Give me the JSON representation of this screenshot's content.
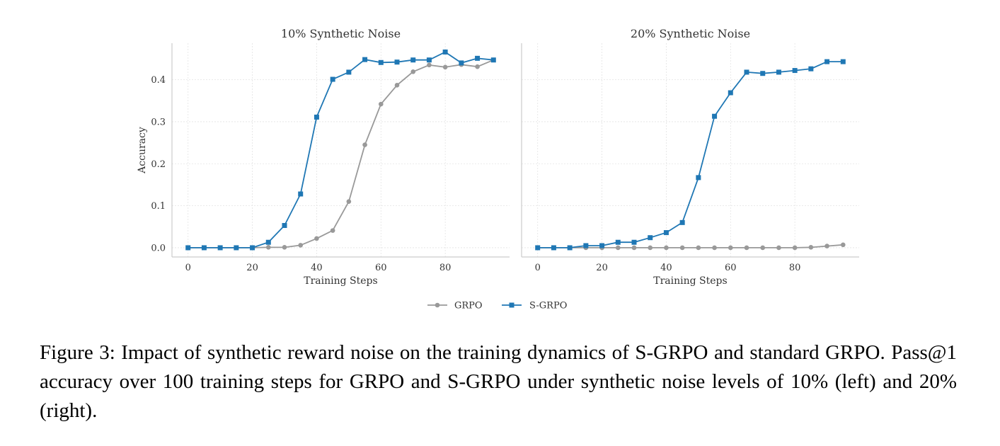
{
  "chart_data": [
    {
      "type": "line",
      "title": "10% Synthetic Noise",
      "xlabel": "Training Steps",
      "ylabel": "Accuracy",
      "xlim": [
        -5,
        100
      ],
      "ylim": [
        -0.022,
        0.487
      ],
      "xticks": [
        "0",
        "20",
        "40",
        "60",
        "80"
      ],
      "yticks": [
        "0.0",
        "0.1",
        "0.2",
        "0.3",
        "0.4"
      ],
      "grid": true,
      "x": [
        0,
        5,
        10,
        15,
        20,
        25,
        30,
        35,
        40,
        45,
        50,
        55,
        60,
        65,
        70,
        75,
        80,
        85,
        90,
        95
      ],
      "series": [
        {
          "name": "GRPO",
          "color": "#999999",
          "marker": "circle",
          "values": [
            0.0,
            0.0,
            0.0,
            0.0,
            0.0,
            0.001,
            0.001,
            0.006,
            0.022,
            0.041,
            0.11,
            0.245,
            0.342,
            0.387,
            0.419,
            0.435,
            0.43,
            0.436,
            0.431,
            0.447
          ]
        },
        {
          "name": "S-GRPO",
          "color": "#1f77b4",
          "marker": "square",
          "values": [
            0.0,
            0.0,
            0.0,
            0.0,
            0.0,
            0.013,
            0.053,
            0.128,
            0.311,
            0.401,
            0.418,
            0.448,
            0.441,
            0.442,
            0.447,
            0.447,
            0.466,
            0.44,
            0.451,
            0.447
          ]
        }
      ]
    },
    {
      "type": "line",
      "title": "20% Synthetic Noise",
      "xlabel": "Training Steps",
      "ylabel": "",
      "xlim": [
        -5,
        100
      ],
      "ylim": [
        -0.022,
        0.487
      ],
      "xticks": [
        "0",
        "20",
        "40",
        "60",
        "80"
      ],
      "yticks": [],
      "grid": true,
      "x": [
        0,
        5,
        10,
        15,
        20,
        25,
        30,
        35,
        40,
        45,
        50,
        55,
        60,
        65,
        70,
        75,
        80,
        85,
        90,
        95
      ],
      "series": [
        {
          "name": "GRPO",
          "color": "#999999",
          "marker": "circle",
          "values": [
            0.0,
            0.0,
            0.0,
            0.0,
            0.0,
            0.0,
            0.0,
            0.0,
            0.0,
            0.0,
            0.0,
            0.0,
            0.0,
            0.0,
            0.0,
            0.0,
            0.0,
            0.001,
            0.004,
            0.007
          ]
        },
        {
          "name": "S-GRPO",
          "color": "#1f77b4",
          "marker": "square",
          "values": [
            0.0,
            0.0,
            0.0,
            0.005,
            0.005,
            0.013,
            0.013,
            0.024,
            0.036,
            0.06,
            0.167,
            0.313,
            0.369,
            0.418,
            0.415,
            0.418,
            0.422,
            0.426,
            0.443,
            0.443
          ]
        }
      ]
    }
  ],
  "legend": {
    "placement": "bottom-center",
    "items": [
      {
        "label": "GRPO",
        "color": "#999999",
        "marker": "circle"
      },
      {
        "label": "S-GRPO",
        "color": "#1f77b4",
        "marker": "square"
      }
    ]
  },
  "caption": "Figure 3: Impact of synthetic reward noise on the training dynamics of S-GRPO and standard GRPO. Pass@1 accuracy over 100 training steps for GRPO and S-GRPO under synthetic noise levels of 10% (left) and 20% (right)."
}
